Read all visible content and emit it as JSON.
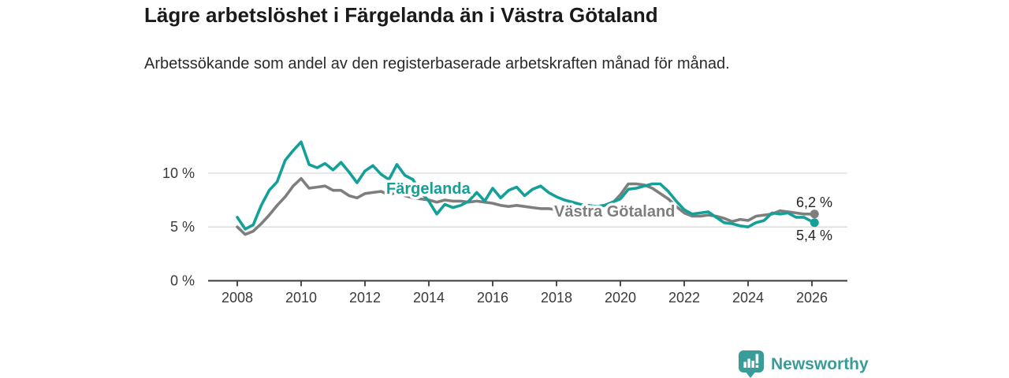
{
  "header": {
    "title": "Lägre arbetslöshet i Färgelanda än i Västra Götaland",
    "subtitle": "Arbetssökande som andel av den registerbaserade arbetskraften månad för månad."
  },
  "chart_data": {
    "type": "line",
    "title": "Lägre arbetslöshet i Färgelanda än i Västra Götaland",
    "subtitle": "Arbetssökande som andel av den registerbaserade arbetskraften månad för månad.",
    "xlabel": "",
    "ylabel": "",
    "grid": "horizontal",
    "legend_position": "inline-labels",
    "xlim": [
      2007.1,
      2027.1
    ],
    "ylim": [
      0,
      13.5
    ],
    "x_ticks": [
      2008,
      2010,
      2012,
      2014,
      2016,
      2018,
      2020,
      2022,
      2024,
      2026
    ],
    "y_ticks": [
      {
        "value": 0,
        "label": "0 %"
      },
      {
        "value": 5,
        "label": "5 %"
      },
      {
        "value": 10,
        "label": "10 %"
      }
    ],
    "x": [
      2008,
      2008.25,
      2008.5,
      2008.75,
      2009,
      2009.25,
      2009.5,
      2009.75,
      2010,
      2010.25,
      2010.5,
      2010.75,
      2011,
      2011.25,
      2011.5,
      2011.75,
      2012,
      2012.25,
      2012.5,
      2012.75,
      2013,
      2013.25,
      2013.5,
      2013.75,
      2014,
      2014.25,
      2014.5,
      2014.75,
      2015,
      2015.25,
      2015.5,
      2015.75,
      2016,
      2016.25,
      2016.5,
      2016.75,
      2017,
      2017.25,
      2017.5,
      2017.75,
      2018,
      2018.25,
      2018.5,
      2018.75,
      2019,
      2019.25,
      2019.5,
      2019.75,
      2020,
      2020.25,
      2020.5,
      2020.75,
      2021,
      2021.25,
      2021.5,
      2021.75,
      2022,
      2022.25,
      2022.5,
      2022.75,
      2023,
      2023.25,
      2023.5,
      2023.75,
      2024,
      2024.25,
      2024.5,
      2024.75,
      2025,
      2025.25,
      2025.5,
      2025.75,
      2026,
      2026.08
    ],
    "series": [
      {
        "name": "Färgelanda",
        "color": "#14a098",
        "end_value": 5.4,
        "end_label": "5,4 %",
        "values": [
          5.9,
          4.8,
          5.2,
          7.0,
          8.4,
          9.2,
          11.2,
          12.1,
          12.9,
          10.8,
          10.5,
          10.9,
          10.3,
          11.0,
          10.1,
          9.1,
          10.2,
          10.7,
          9.9,
          9.4,
          10.8,
          9.8,
          9.4,
          8.2,
          7.4,
          6.2,
          7.1,
          6.8,
          7.0,
          7.4,
          8.2,
          7.4,
          8.6,
          7.7,
          8.4,
          8.7,
          7.9,
          8.5,
          8.8,
          8.2,
          7.8,
          7.5,
          7.3,
          7.1,
          7.0,
          6.9,
          7.0,
          7.3,
          7.6,
          8.5,
          8.6,
          8.8,
          9.0,
          9.0,
          8.3,
          7.4,
          6.6,
          6.2,
          6.3,
          6.4,
          5.9,
          5.4,
          5.3,
          5.1,
          5.0,
          5.4,
          5.6,
          6.3,
          6.2,
          6.3,
          5.9,
          5.9,
          5.5,
          5.4
        ]
      },
      {
        "name": "Västra Götaland",
        "color": "#7e7e7e",
        "end_value": 6.2,
        "end_label": "6,2 %",
        "values": [
          5.0,
          4.3,
          4.6,
          5.3,
          6.1,
          7.0,
          7.8,
          8.8,
          9.5,
          8.6,
          8.7,
          8.8,
          8.4,
          8.4,
          7.9,
          7.7,
          8.1,
          8.2,
          8.3,
          8.0,
          8.2,
          7.9,
          7.7,
          7.6,
          7.5,
          7.3,
          7.5,
          7.4,
          7.4,
          7.3,
          7.4,
          7.3,
          7.2,
          7.0,
          6.9,
          7.0,
          6.9,
          6.8,
          6.7,
          6.7,
          6.6,
          6.6,
          6.7,
          6.8,
          6.8,
          6.9,
          7.0,
          7.2,
          8.0,
          9.0,
          9.0,
          8.9,
          8.6,
          8.1,
          7.6,
          6.9,
          6.3,
          6.0,
          6.0,
          6.1,
          6.0,
          5.8,
          5.5,
          5.7,
          5.6,
          6.0,
          6.1,
          6.2,
          6.5,
          6.4,
          6.3,
          6.2,
          6.2,
          6.2
        ]
      }
    ],
    "colors": {
      "grid": "#d8d8d8",
      "axis": "#3a3a3a",
      "tick_label": "#3a3a3a",
      "end_label": "#242424"
    }
  },
  "branding": {
    "logo_text": "Newsworthy",
    "logo_color": "#3a9c98",
    "logo_icon": "bar-chart-badge-icon"
  }
}
